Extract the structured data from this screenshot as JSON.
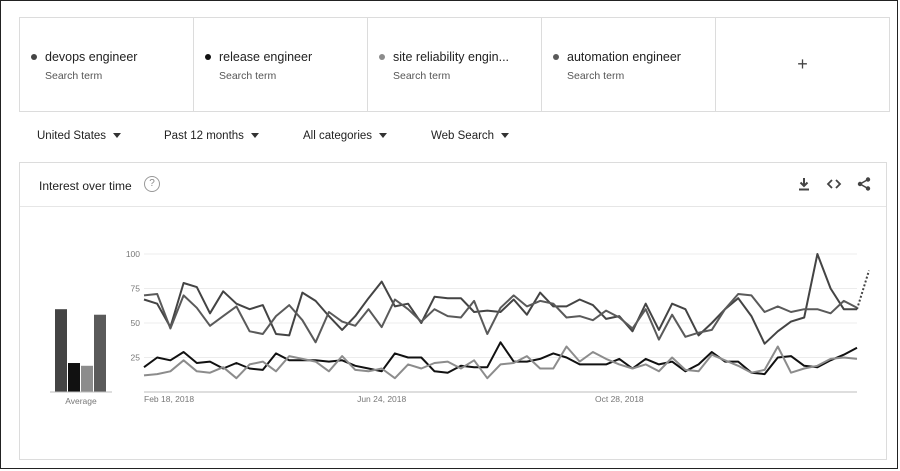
{
  "terms": [
    {
      "name": "devops engineer",
      "sub": "Search term",
      "color": "#444444"
    },
    {
      "name": "release engineer",
      "sub": "Search term",
      "color": "#111111"
    },
    {
      "name": "site reliability engin...",
      "sub": "Search term",
      "color": "#8c8c8c"
    },
    {
      "name": "automation engineer",
      "sub": "Search term",
      "color": "#5a5a5a"
    }
  ],
  "add_term_label": "+",
  "filters": {
    "region": "United States",
    "period": "Past 12 months",
    "category": "All categories",
    "search_type": "Web Search"
  },
  "card": {
    "title": "Interest over time",
    "help_icon": "help-icon",
    "download_icon": "download-icon",
    "embed_icon": "embed-icon",
    "share_icon": "share-icon"
  },
  "chart_data": {
    "type": "line",
    "title": "Interest over time",
    "ylim": [
      0,
      100
    ],
    "y_ticks": [
      "25",
      "50",
      "75",
      "100"
    ],
    "x_ticks": [
      "Feb 18, 2018",
      "Jun 24, 2018",
      "Oct 28, 2018"
    ],
    "average_label": "Average",
    "averages": [
      {
        "term": "devops engineer",
        "value": 60
      },
      {
        "term": "release engineer",
        "value": 21
      },
      {
        "term": "site reliability engin...",
        "value": 19
      },
      {
        "term": "automation engineer",
        "value": 56
      }
    ],
    "series": [
      {
        "name": "devops engineer",
        "color": "#444444",
        "values": [
          67,
          64,
          47,
          79,
          76,
          57,
          73,
          64,
          60,
          63,
          42,
          41,
          72,
          66,
          55,
          45,
          55,
          68,
          80,
          62,
          64,
          50,
          69,
          68,
          68,
          58,
          59,
          58,
          67,
          56,
          72,
          62,
          62,
          67,
          63,
          53,
          55,
          44,
          64,
          45,
          64,
          60,
          41,
          50,
          60,
          68,
          55,
          35,
          44,
          51,
          54,
          100,
          75,
          60,
          60
        ]
      },
      {
        "name": "release engineer",
        "color": "#111111",
        "values": [
          18,
          25,
          23,
          29,
          21,
          22,
          17,
          21,
          17,
          16,
          28,
          23,
          23,
          23,
          22,
          23,
          19,
          17,
          15,
          28,
          25,
          25,
          15,
          14,
          19,
          18,
          18,
          36,
          22,
          22,
          24,
          28,
          25,
          20,
          20,
          20,
          24,
          17,
          24,
          20,
          22,
          15,
          20,
          29,
          22,
          22,
          14,
          13,
          25,
          26,
          19,
          18,
          23,
          27,
          32
        ]
      },
      {
        "name": "site reliability engin...",
        "color": "#8c8c8c",
        "values": [
          12,
          13,
          15,
          23,
          15,
          14,
          18,
          10,
          20,
          22,
          15,
          26,
          24,
          22,
          15,
          26,
          16,
          15,
          17,
          10,
          20,
          17,
          21,
          22,
          17,
          23,
          10,
          20,
          21,
          26,
          17,
          17,
          33,
          22,
          29,
          24,
          20,
          17,
          20,
          15,
          25,
          16,
          15,
          27,
          23,
          19,
          14,
          16,
          33,
          14,
          17,
          19,
          24,
          25,
          24
        ]
      },
      {
        "name": "automation engineer",
        "color": "#5a5a5a",
        "values": [
          70,
          71,
          46,
          70,
          61,
          48,
          55,
          62,
          44,
          42,
          55,
          63,
          52,
          36,
          58,
          51,
          48,
          60,
          47,
          67,
          60,
          51,
          60,
          55,
          54,
          66,
          42,
          61,
          70,
          62,
          66,
          64,
          54,
          55,
          52,
          59,
          54,
          46,
          60,
          38,
          56,
          40,
          43,
          45,
          60,
          71,
          70,
          58,
          62,
          58,
          60,
          60,
          57,
          66,
          61
        ]
      }
    ]
  }
}
